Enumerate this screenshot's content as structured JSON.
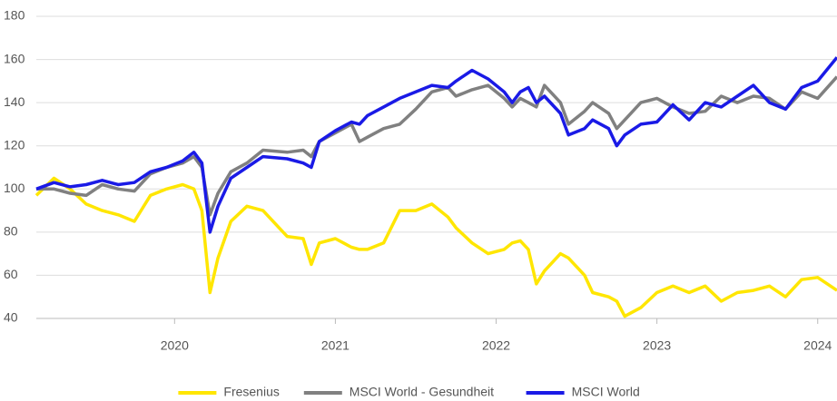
{
  "chart_data": {
    "type": "line",
    "x": [
      2019.14,
      2019.25,
      2019.35,
      2019.45,
      2019.55,
      2019.65,
      2019.75,
      2019.85,
      2019.95,
      2020.05,
      2020.12,
      2020.17,
      2020.22,
      2020.27,
      2020.35,
      2020.45,
      2020.55,
      2020.7,
      2020.8,
      2020.85,
      2020.9,
      2021.0,
      2021.1,
      2021.15,
      2021.2,
      2021.3,
      2021.4,
      2021.5,
      2021.6,
      2021.7,
      2021.75,
      2021.85,
      2021.95,
      2022.05,
      2022.1,
      2022.15,
      2022.2,
      2022.25,
      2022.3,
      2022.4,
      2022.45,
      2022.55,
      2022.6,
      2022.7,
      2022.75,
      2022.8,
      2022.9,
      2023.0,
      2023.1,
      2023.2,
      2023.3,
      2023.4,
      2023.5,
      2023.6,
      2023.7,
      2023.8,
      2023.9,
      2024.0,
      2024.12
    ],
    "series": [
      {
        "name": "Fresenius",
        "color": "#ffe600",
        "values": [
          97,
          105,
          100,
          93,
          90,
          88,
          85,
          97,
          100,
          102,
          100,
          90,
          52,
          68,
          85,
          92,
          90,
          78,
          77,
          65,
          75,
          77,
          73,
          72,
          72,
          75,
          90,
          90,
          93,
          87,
          82,
          75,
          70,
          72,
          75,
          76,
          72,
          56,
          62,
          70,
          68,
          60,
          52,
          50,
          48,
          41,
          45,
          52,
          55,
          52,
          55,
          48,
          52,
          53,
          55,
          50,
          58,
          59,
          53
        ]
      },
      {
        "name": "MSCI World - Gesundheit",
        "color": "#808080",
        "values": [
          100,
          100,
          98,
          97,
          102,
          100,
          99,
          107,
          110,
          112,
          115,
          110,
          88,
          98,
          108,
          112,
          118,
          117,
          118,
          115,
          122,
          126,
          130,
          122,
          124,
          128,
          130,
          137,
          145,
          147,
          143,
          146,
          148,
          142,
          138,
          142,
          140,
          138,
          148,
          140,
          130,
          136,
          140,
          135,
          128,
          132,
          140,
          142,
          138,
          135,
          136,
          143,
          140,
          143,
          142,
          137,
          145,
          142,
          152
        ]
      },
      {
        "name": "MSCI World",
        "color": "#1a1ae6",
        "values": [
          100,
          103,
          101,
          102,
          104,
          102,
          103,
          108,
          110,
          113,
          117,
          112,
          80,
          92,
          105,
          110,
          115,
          114,
          112,
          110,
          122,
          127,
          131,
          130,
          134,
          138,
          142,
          145,
          148,
          147,
          150,
          155,
          151,
          145,
          140,
          145,
          147,
          140,
          143,
          135,
          125,
          128,
          132,
          128,
          120,
          125,
          130,
          131,
          139,
          132,
          140,
          138,
          143,
          148,
          140,
          137,
          147,
          150,
          161
        ]
      }
    ],
    "xlim": [
      2019.14,
      2024.12
    ],
    "xticks": [
      2020,
      2021,
      2022,
      2023,
      2024
    ],
    "ylim": [
      40,
      180
    ],
    "yticks": [
      40,
      60,
      80,
      100,
      120,
      140,
      160,
      180
    ],
    "grid": true,
    "legend": "bottom"
  }
}
